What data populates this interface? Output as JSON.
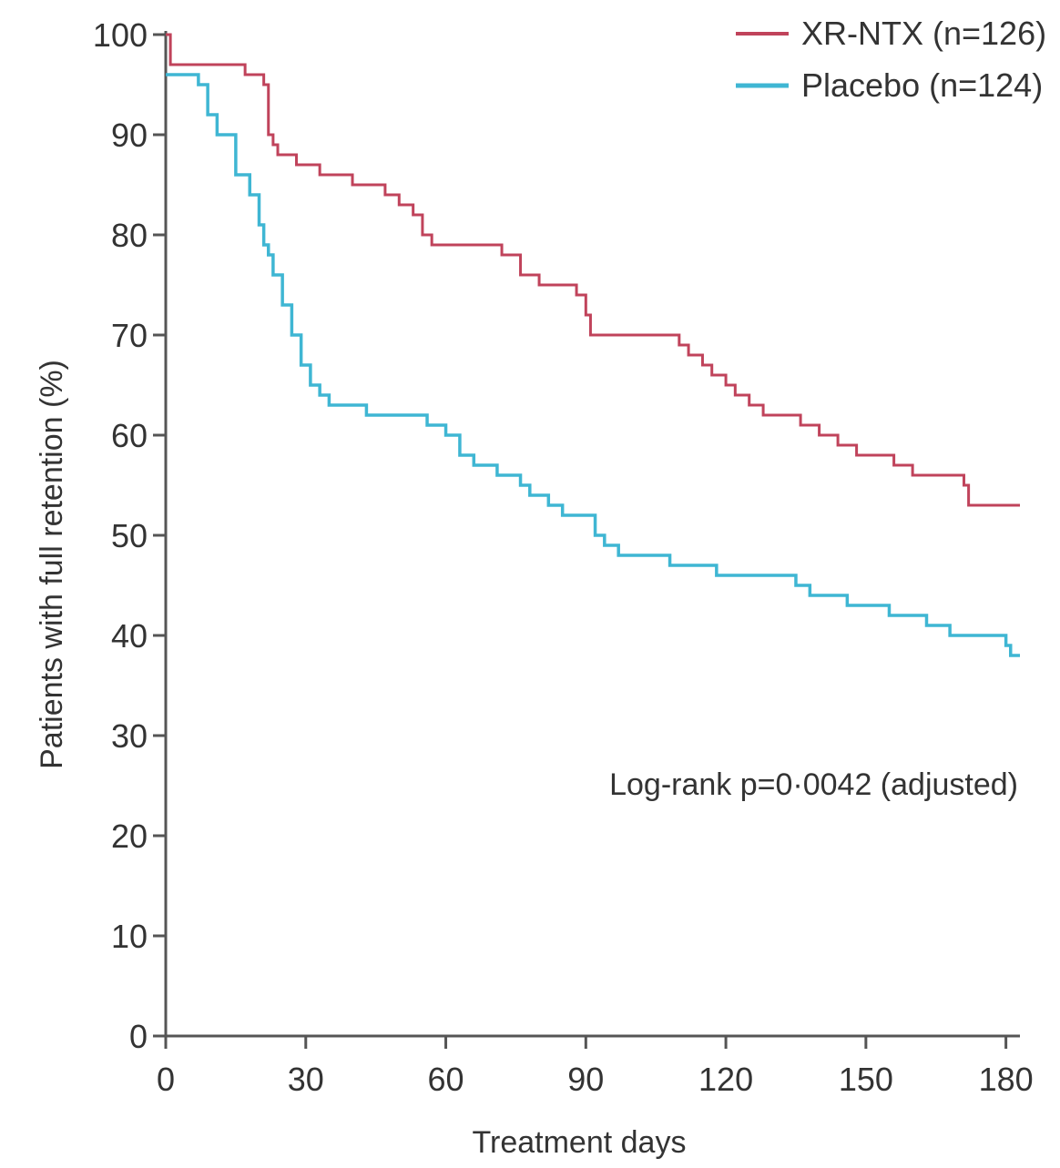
{
  "chart_data": {
    "type": "line",
    "step": true,
    "xlabel": "Treatment days",
    "ylabel": "Patients with full retention (%)",
    "xlim": [
      0,
      183
    ],
    "ylim": [
      0,
      100
    ],
    "xticks": [
      "0",
      "30",
      "60",
      "90",
      "120",
      "150",
      "180"
    ],
    "xtick_values": [
      0,
      30,
      60,
      90,
      120,
      150,
      180
    ],
    "yticks": [
      "0",
      "10",
      "20",
      "30",
      "40",
      "50",
      "60",
      "70",
      "80",
      "90",
      "100"
    ],
    "ytick_values": [
      0,
      10,
      20,
      30,
      40,
      50,
      60,
      70,
      80,
      90,
      100
    ],
    "grid": false,
    "legend_position": "top-right",
    "annotation": "Log-rank p=0·0042 (adjusted)",
    "series": [
      {
        "name": "XR-NTX (n=126)",
        "color": "#c0435b",
        "x": [
          0,
          1,
          14,
          17,
          21,
          22,
          23,
          24,
          28,
          31,
          33,
          38,
          40,
          43,
          47,
          50,
          53,
          55,
          57,
          63,
          72,
          76,
          80,
          86,
          88,
          90,
          91,
          94,
          108,
          110,
          112,
          115,
          117,
          120,
          122,
          125,
          128,
          131,
          136,
          140,
          144,
          148,
          153,
          156,
          160,
          163,
          171,
          172,
          183
        ],
        "y": [
          100,
          97,
          97,
          96,
          95,
          90,
          89,
          88,
          87,
          87,
          86,
          86,
          85,
          85,
          84,
          83,
          82,
          80,
          79,
          79,
          78,
          76,
          75,
          75,
          74,
          72,
          70,
          70,
          70,
          69,
          68,
          67,
          66,
          65,
          64,
          63,
          62,
          62,
          61,
          60,
          59,
          58,
          58,
          57,
          56,
          56,
          55,
          53,
          53
        ]
      },
      {
        "name": "Placebo (n=124)",
        "color": "#3fb6d3",
        "x": [
          0,
          1,
          7,
          9,
          11,
          15,
          18,
          20,
          21,
          22,
          23,
          25,
          27,
          29,
          31,
          33,
          35,
          38,
          43,
          49,
          54,
          56,
          60,
          63,
          66,
          71,
          76,
          78,
          82,
          85,
          88,
          92,
          94,
          97,
          102,
          108,
          113,
          118,
          126,
          129,
          135,
          138,
          142,
          146,
          150,
          155,
          160,
          163,
          168,
          172,
          180,
          181,
          183
        ],
        "y": [
          96,
          96,
          95,
          92,
          90,
          86,
          84,
          81,
          79,
          78,
          76,
          73,
          70,
          67,
          65,
          64,
          63,
          63,
          62,
          62,
          62,
          61,
          60,
          58,
          57,
          56,
          55,
          54,
          53,
          52,
          52,
          50,
          49,
          48,
          48,
          47,
          47,
          46,
          46,
          46,
          45,
          44,
          44,
          43,
          43,
          42,
          42,
          41,
          40,
          40,
          39,
          38,
          38
        ]
      }
    ]
  }
}
